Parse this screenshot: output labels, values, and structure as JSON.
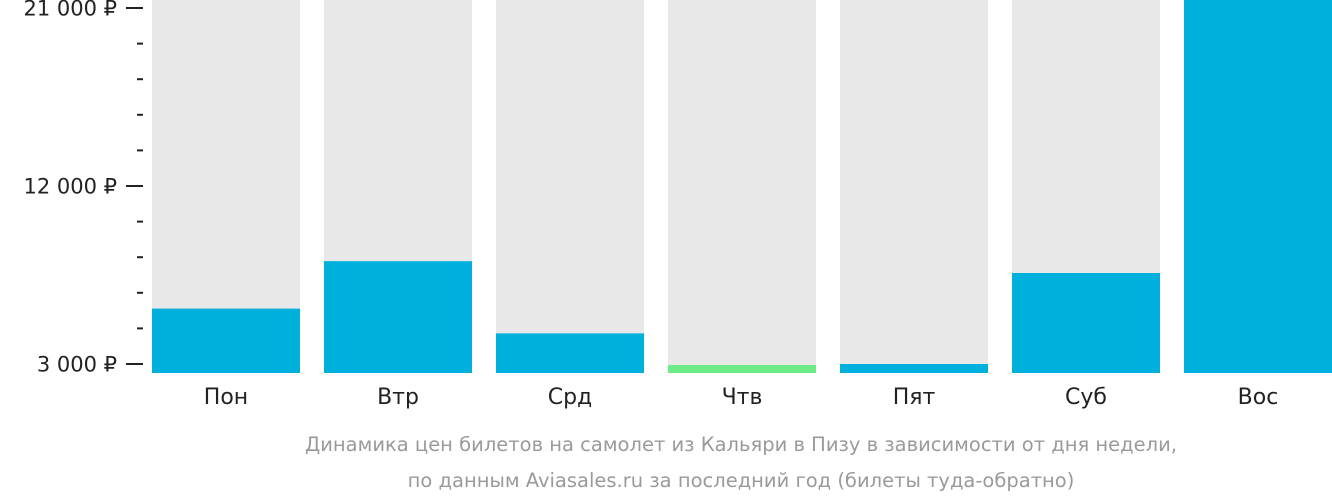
{
  "chart_data": {
    "type": "bar",
    "categories": [
      "Пон",
      "Втр",
      "Срд",
      "Чтв",
      "Пят",
      "Суб",
      "Вос"
    ],
    "values": [
      5800,
      8200,
      4550,
      2950,
      3000,
      7600,
      22000
    ],
    "ylim": [
      3000,
      21000
    ],
    "y_tick_labels": [
      {
        "value": 21000,
        "label": "21 000 ₽"
      },
      {
        "value": 12000,
        "label": "12 000 ₽"
      },
      {
        "value": 3000,
        "label": "3 000 ₽"
      }
    ],
    "y_minor_ticks": [
      19200,
      17400,
      15600,
      13800,
      10200,
      8400,
      6600,
      4800
    ],
    "highlight_index": 3,
    "caption_lines": [
      "Динамика цен билетов на самолет из Кальяри в Пизу в зависимости от дня недели,",
      "по данным Aviasales.ru за последний год (билеты туда-обратно)"
    ],
    "colors": {
      "bar": "#00b0dc",
      "highlight": "#6ceb87",
      "track": "#e8e8e8",
      "axis": "#222222",
      "caption": "#9a9a9a"
    }
  }
}
